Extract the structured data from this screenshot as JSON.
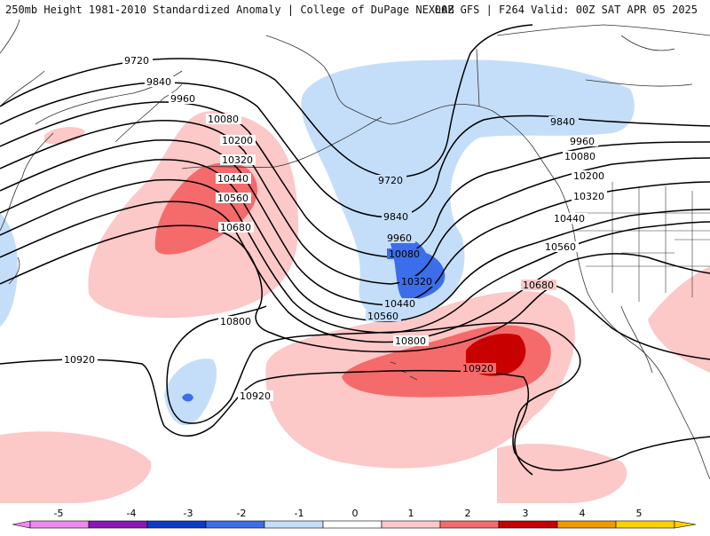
{
  "header": {
    "left_title": "250mb Height 1981-2010 Standardized Anomaly | College of DuPage NEXLAB",
    "right_title": "00Z GFS | F264 Valid: 00Z SAT APR 05 2025"
  },
  "contours": {
    "labels": [
      "9720",
      "9840",
      "9960",
      "10080",
      "10200",
      "10320",
      "10440",
      "10560",
      "10680",
      "10800",
      "10920"
    ],
    "extra_labels": [
      "10920",
      "10800",
      "10680",
      "10560",
      "10440",
      "10320",
      "10200",
      "10080",
      "9960",
      "9840",
      "9720"
    ]
  },
  "colorbar": {
    "ticks": [
      "-5",
      "-4",
      "-3",
      "-2",
      "-1",
      "0",
      "1",
      "2",
      "3",
      "4",
      "5"
    ],
    "colors": [
      "#ee88ee",
      "#8a16b8",
      "#0a3cc8",
      "#3c6eeb",
      "#c4defa",
      "#ffffff",
      "#fcc8c8",
      "#f56a6a",
      "#c80000",
      "#ee9900",
      "#ffd000"
    ]
  },
  "shading_colors": {
    "pos1": "#fcc8c8",
    "pos2": "#f56a6a",
    "pos3": "#c80000",
    "neg1": "#c4defa",
    "neg2": "#3c6eeb"
  }
}
